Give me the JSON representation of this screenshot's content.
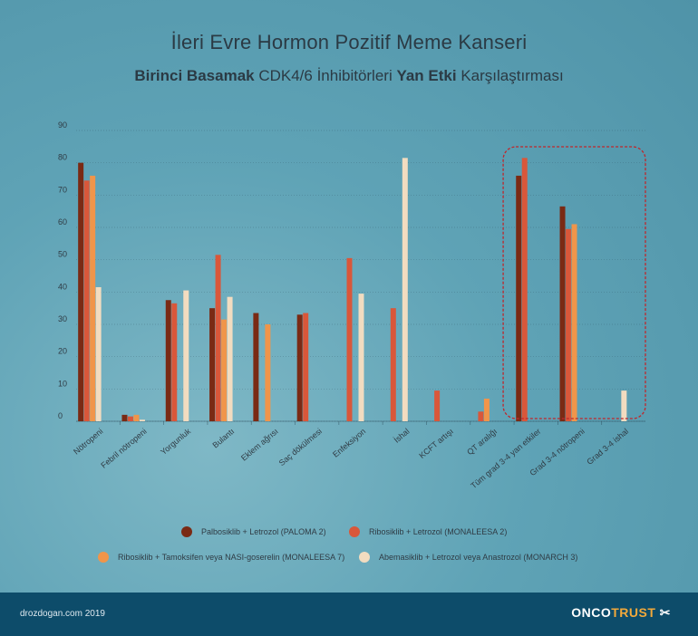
{
  "header": {
    "title": "İleri Evre Hormon Pozitif Meme Kanseri",
    "subtitle_bold1": "Birinci Basamak",
    "subtitle_mid1": " CDK4/6 İnhibitörleri ",
    "subtitle_bold2": "Yan Etki",
    "subtitle_end": " Karşılaştırması"
  },
  "chart_data": {
    "type": "bar",
    "title": "İleri Evre Hormon Pozitif Meme Kanseri — Birinci Basamak CDK4/6 İnhibitörleri Yan Etki Karşılaştırması",
    "xlabel": "",
    "ylabel": "",
    "ylim": [
      0,
      90
    ],
    "yticks": [
      0,
      10,
      20,
      30,
      40,
      50,
      60,
      70,
      80,
      90
    ],
    "grid": true,
    "legend_position": "bottom",
    "highlight_categories": [
      "Tüm grad 3-4 yan etkiler",
      "Grad 3-4 nötropeni",
      "Grad 3-4 ishal"
    ],
    "categories": [
      "Nötropeni",
      "Febril nötropeni",
      "Yorgunluk",
      "Bulantı",
      "Eklem ağrısı",
      "Saç dökülmesi",
      "Enfeksiyon",
      "İshal",
      "KCFT artışı",
      "QT aralığı",
      "Tüm grad 3-4 yan etkiler",
      "Grad 3-4 nötropeni",
      "Grad 3-4 ishal"
    ],
    "series": [
      {
        "name": "Palbosiklib + Letrozol (PALOMA 2)",
        "color": "#7a2a14",
        "values": [
          80,
          2,
          37.5,
          35,
          33.5,
          33,
          null,
          null,
          null,
          null,
          76,
          66.5,
          null
        ]
      },
      {
        "name": "Ribosiklib + Letrozol (MONALEESA 2)",
        "color": "#d9573a",
        "values": [
          74.5,
          1.5,
          36.5,
          51.5,
          null,
          33.5,
          50.5,
          35,
          9.5,
          3,
          81.5,
          59.5,
          null
        ]
      },
      {
        "name": "Ribosiklib + Tamoksifen veya NASI-goserelin (MONALEESA 7)",
        "color": "#f0954a",
        "values": [
          76,
          2,
          null,
          31.5,
          30,
          null,
          null,
          null,
          null,
          7,
          null,
          61,
          null
        ]
      },
      {
        "name": "Abemasiklib + Letrozol veya Anastrozol (MONARCH 3)",
        "color": "#f2dcc0",
        "values": [
          41.5,
          0.5,
          40.5,
          38.5,
          null,
          null,
          39.5,
          81.5,
          null,
          null,
          null,
          null,
          9.5
        ]
      }
    ]
  },
  "footer": {
    "site": "drozdogan.com 2019",
    "brand_part1": "ONCO",
    "brand_part2": "TRUST"
  }
}
